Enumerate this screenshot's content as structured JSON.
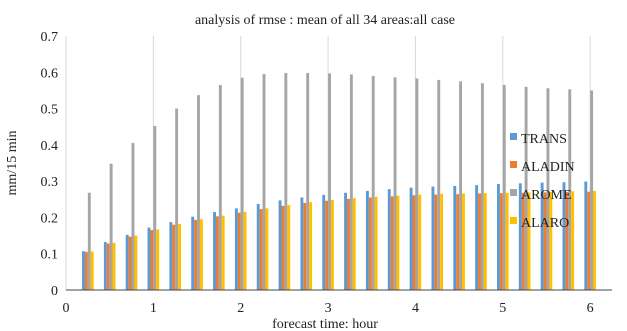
{
  "chart_data": {
    "type": "bar",
    "title": "analysis of rmse : mean of all 34 areas:all case",
    "xlabel": "forecast time: hour",
    "ylabel": "mm/15 min",
    "xlim": [
      0,
      6.25
    ],
    "ylim": [
      0,
      0.7
    ],
    "xticks": [
      "0",
      "1",
      "2",
      "3",
      "4",
      "5",
      "6"
    ],
    "yticks": [
      "0",
      "0.1",
      "0.2",
      "0.3",
      "0.4",
      "0.5",
      "0.6",
      "0.7"
    ],
    "grid": "vertical",
    "legend": "right",
    "x": [
      0.25,
      0.5,
      0.75,
      1.0,
      1.25,
      1.5,
      1.75,
      2.0,
      2.25,
      2.5,
      2.75,
      3.0,
      3.25,
      3.5,
      3.75,
      4.0,
      4.25,
      4.5,
      4.75,
      5.0,
      5.25,
      5.5,
      5.75,
      6.0
    ],
    "series": [
      {
        "name": "TRANS",
        "color": "#5b9bd5",
        "values": [
          0.107,
          0.132,
          0.152,
          0.172,
          0.187,
          0.202,
          0.215,
          0.225,
          0.237,
          0.247,
          0.255,
          0.262,
          0.268,
          0.273,
          0.278,
          0.282,
          0.285,
          0.287,
          0.289,
          0.292,
          0.294,
          0.296,
          0.297,
          0.299
        ]
      },
      {
        "name": "ALADIN",
        "color": "#ed7d31",
        "values": [
          0.105,
          0.128,
          0.147,
          0.165,
          0.18,
          0.193,
          0.203,
          0.213,
          0.223,
          0.232,
          0.24,
          0.246,
          0.251,
          0.255,
          0.258,
          0.261,
          0.263,
          0.264,
          0.266,
          0.267,
          0.268,
          0.269,
          0.27,
          0.271
        ]
      },
      {
        "name": "AROME",
        "color": "#a5a5a5",
        "values": [
          0.268,
          0.348,
          0.405,
          0.452,
          0.5,
          0.537,
          0.565,
          0.585,
          0.595,
          0.598,
          0.598,
          0.597,
          0.594,
          0.59,
          0.586,
          0.583,
          0.579,
          0.575,
          0.57,
          0.565,
          0.56,
          0.556,
          0.553,
          0.55
        ]
      },
      {
        "name": "ALARO",
        "color": "#ffc000",
        "values": [
          0.106,
          0.13,
          0.15,
          0.167,
          0.182,
          0.195,
          0.205,
          0.215,
          0.225,
          0.234,
          0.242,
          0.248,
          0.253,
          0.257,
          0.26,
          0.263,
          0.265,
          0.266,
          0.267,
          0.268,
          0.269,
          0.27,
          0.272,
          0.273
        ]
      }
    ]
  }
}
